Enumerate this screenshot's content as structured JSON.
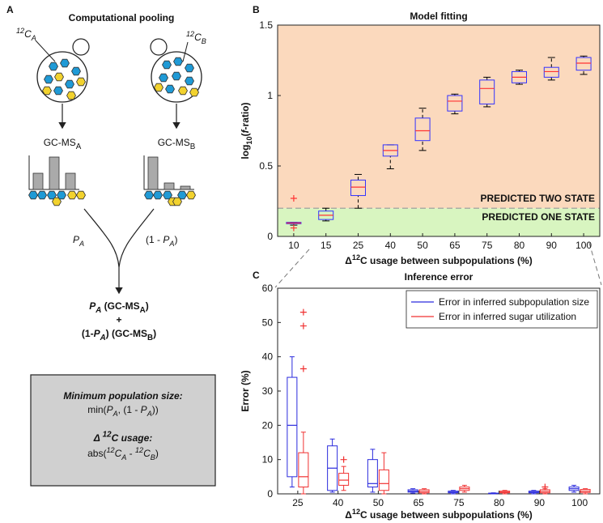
{
  "panel_a": {
    "letter": "A",
    "title": "Computational pooling",
    "iso_a": [
      "12",
      "C",
      "A"
    ],
    "iso_b": [
      "12",
      "C",
      "B"
    ],
    "gcms_a": [
      "GC-MS",
      "A"
    ],
    "gcms_b": [
      "GC-MS",
      "B"
    ],
    "weight_a": [
      "P",
      "A"
    ],
    "weight_b": [
      "(1 - ",
      "P",
      "A",
      ")"
    ],
    "formula": [
      [
        "P",
        "A",
        " (GC-MS",
        "A",
        ")"
      ],
      [
        "+"
      ],
      [
        "(1-",
        "P",
        "A",
        ") (GC-MS",
        "B",
        ")"
      ]
    ],
    "box": {
      "heading1": "Minimum population size:",
      "line1": [
        "min(",
        "P",
        "A",
        ", (1 - ",
        "P",
        "A",
        "))"
      ],
      "heading2": [
        "Δ ",
        "12",
        "C usage:"
      ],
      "line2": [
        "abs(",
        "12",
        "C",
        "A",
        " - ",
        "12",
        "C",
        "B",
        ")"
      ]
    }
  },
  "chart_data": [
    {
      "type": "box",
      "letter": "B",
      "title": "Model fitting",
      "ylabel": [
        "log",
        "10",
        "(",
        "f",
        "-ratio)"
      ],
      "xlabel": [
        "Δ",
        "12",
        "C usage between subpopulations (%)"
      ],
      "categories": [
        "10",
        "15",
        "25",
        "40",
        "50",
        "65",
        "75",
        "80",
        "90",
        "100"
      ],
      "ylim": [
        0,
        1.5
      ],
      "yticks": [
        0,
        0.5,
        1,
        1.5
      ],
      "threshold": 0.2,
      "regions": [
        {
          "label": "PREDICTED TWO STATE",
          "color": "#fbd9bd",
          "text_color": "#e07b1f"
        },
        {
          "label": "PREDICTED ONE STATE",
          "color": "#d8f5c0",
          "text_color": "#5aa71b"
        }
      ],
      "series": [
        {
          "color": "#3333ff",
          "median_color": "#ff3333",
          "whisker_color": "#000000",
          "whisker_style": "dashed",
          "min": [
            0.08,
            0.11,
            0.2,
            0.48,
            0.61,
            0.87,
            0.92,
            1.08,
            1.11,
            1.15
          ],
          "q1": [
            0.09,
            0.12,
            0.29,
            0.57,
            0.68,
            0.89,
            0.94,
            1.09,
            1.13,
            1.18
          ],
          "median": [
            0.095,
            0.15,
            0.35,
            0.61,
            0.75,
            0.96,
            1.05,
            1.13,
            1.17,
            1.23
          ],
          "q3": [
            0.1,
            0.18,
            0.4,
            0.65,
            0.84,
            1.0,
            1.11,
            1.17,
            1.2,
            1.27
          ],
          "max": [
            0.1,
            0.2,
            0.44,
            0.65,
            0.91,
            1.01,
            1.13,
            1.18,
            1.27,
            1.28
          ],
          "outliers": [
            [
              0.27,
              0.06
            ],
            [],
            [],
            [],
            [],
            [],
            [],
            [],
            [],
            []
          ]
        }
      ]
    },
    {
      "type": "box",
      "letter": "C",
      "title": "Inference error",
      "ylabel": [
        "Error (%)"
      ],
      "xlabel": [
        "Δ",
        "12",
        "C usage between subpopulations (%)"
      ],
      "categories": [
        "25",
        "40",
        "50",
        "65",
        "75",
        "80",
        "90",
        "100"
      ],
      "ylim": [
        0,
        60
      ],
      "yticks": [
        0,
        10,
        20,
        30,
        40,
        50,
        60
      ],
      "legend": "upper right",
      "series": [
        {
          "name": "Error in inferred subpopulation size",
          "color": "#2b2bdd",
          "min": [
            2,
            0.5,
            0.5,
            0.2,
            0,
            0,
            0,
            0.5
          ],
          "q1": [
            5,
            1,
            2,
            0.5,
            0.3,
            0.1,
            0.3,
            1
          ],
          "median": [
            20,
            7.5,
            3,
            0.8,
            0.5,
            0.15,
            0.5,
            1.5
          ],
          "q3": [
            34,
            14,
            10,
            1.2,
            0.8,
            0.2,
            0.8,
            2
          ],
          "max": [
            40,
            16,
            13,
            1.5,
            1,
            0.3,
            1,
            2.5
          ],
          "outliers": [
            [],
            [],
            [],
            [],
            [],
            [],
            [],
            []
          ]
        },
        {
          "name": "Error in inferred sugar utilization",
          "color": "#f03030",
          "min": [
            0,
            1,
            0,
            0,
            0.5,
            0,
            0,
            0
          ],
          "q1": [
            2,
            2.5,
            1,
            0.3,
            1,
            0.3,
            0.3,
            0.4
          ],
          "median": [
            5,
            4,
            3,
            0.7,
            1.5,
            0.5,
            0.7,
            0.8
          ],
          "q3": [
            12,
            6,
            7,
            1.2,
            2,
            0.8,
            1.2,
            1.3
          ],
          "max": [
            18,
            8,
            12,
            1.5,
            2.5,
            1,
            1.5,
            1.5
          ],
          "outliers": [
            [
              53,
              49,
              36.5
            ],
            [
              10
            ],
            [],
            [],
            [],
            [],
            [
              2
            ],
            []
          ]
        }
      ]
    }
  ]
}
